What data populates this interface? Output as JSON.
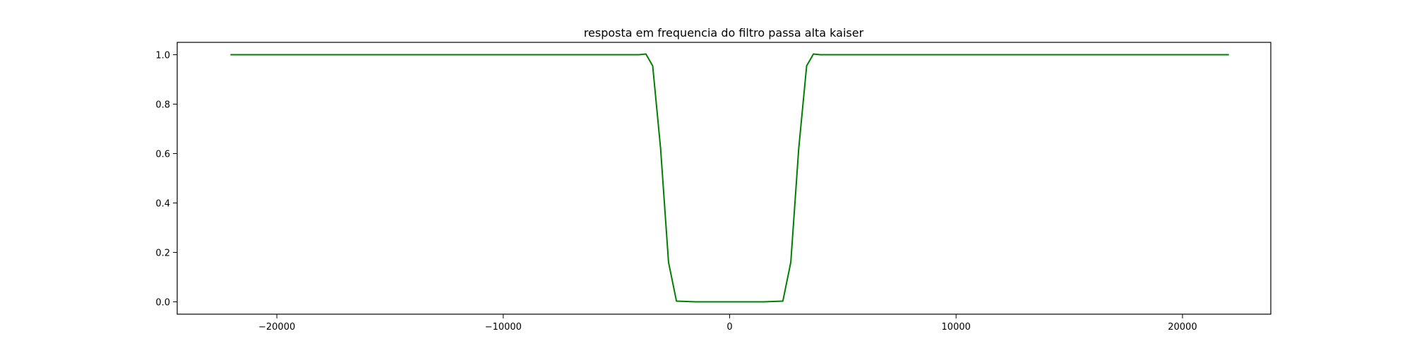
{
  "chart_data": {
    "type": "line",
    "title": "resposta em frequencia do filtro passa alta kaiser",
    "xlabel": "",
    "ylabel": "",
    "xlim": [
      -24400,
      23900
    ],
    "ylim": [
      -0.05,
      1.05
    ],
    "xticks": [
      -20000,
      -10000,
      0,
      10000,
      20000
    ],
    "xtick_labels": [
      "−20000",
      "−10000",
      "0",
      "10000",
      "20000"
    ],
    "yticks": [
      0.0,
      0.2,
      0.4,
      0.6,
      0.8,
      1.0
    ],
    "ytick_labels": [
      "0.0",
      "0.2",
      "0.4",
      "0.6",
      "0.8",
      "1.0"
    ],
    "grid": false,
    "legend": "none",
    "series": [
      {
        "color": "#008000",
        "x": [
          -22050,
          -4000,
          -3700,
          -3400,
          -3050,
          -2700,
          -2350,
          -1500,
          0,
          1500,
          2350,
          2700,
          3050,
          3400,
          3700,
          4000,
          22050
        ],
        "y": [
          1.0,
          1.0,
          1.003,
          0.955,
          0.62,
          0.16,
          0.003,
          0.0,
          0.0,
          0.0,
          0.003,
          0.16,
          0.62,
          0.955,
          1.003,
          1.0,
          1.0
        ]
      }
    ]
  }
}
